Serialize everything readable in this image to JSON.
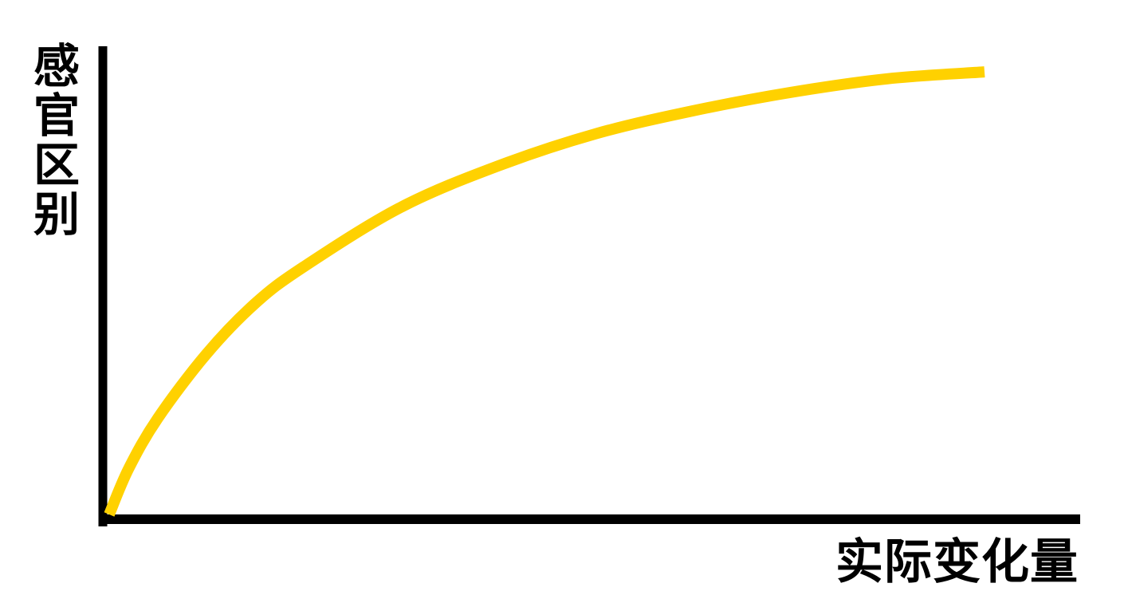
{
  "chart_data": {
    "type": "line",
    "xlabel": "实际变化量",
    "ylabel": "感官区别",
    "ylabel_chars": [
      "感",
      "官",
      "区",
      "别"
    ],
    "grid": false,
    "legend": "none",
    "x_ticks": "none",
    "y_ticks": "none",
    "xlim": [
      0,
      1
    ],
    "ylim": [
      0,
      1
    ],
    "series": [
      {
        "color": "#FFD100",
        "x": [
          0.0,
          0.02,
          0.05,
          0.1,
          0.15,
          0.2,
          0.3,
          0.4,
          0.5,
          0.6,
          0.7,
          0.8,
          0.9
        ],
        "y": [
          0.0,
          0.1,
          0.21,
          0.35,
          0.46,
          0.54,
          0.67,
          0.76,
          0.83,
          0.88,
          0.92,
          0.95,
          0.965
        ]
      }
    ]
  },
  "colors": {
    "axis": "#000000",
    "curve": "#FFD100",
    "background": "#FFFFFF"
  }
}
